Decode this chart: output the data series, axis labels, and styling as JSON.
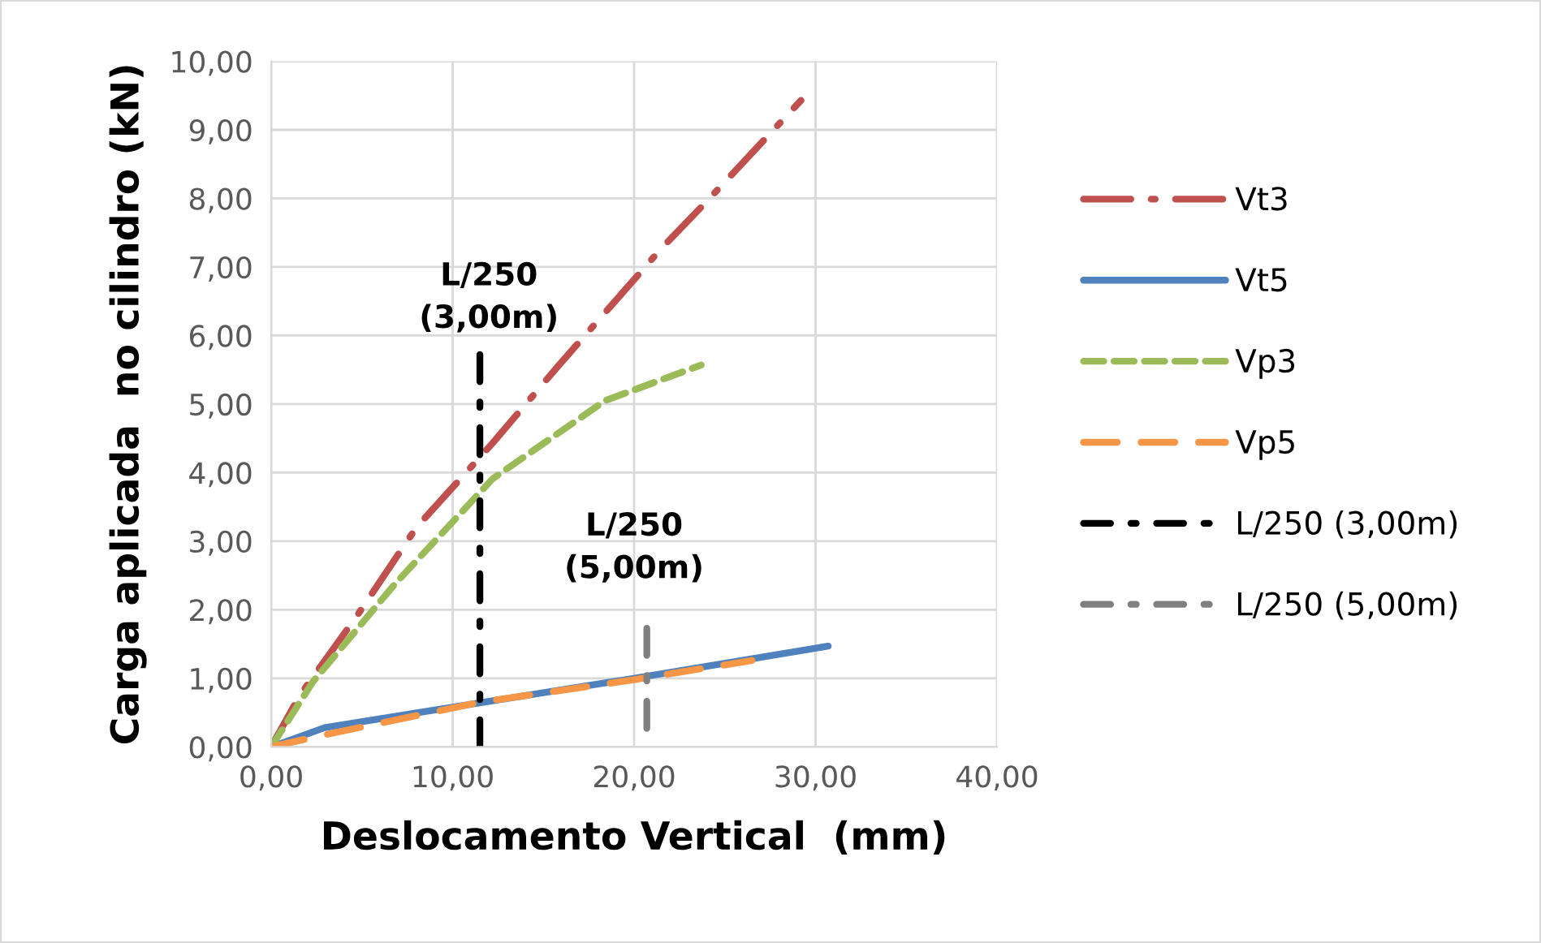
{
  "chart_data": {
    "type": "line",
    "xlabel": "Deslocamento Vertical  (mm)",
    "ylabel": "Carga aplicada  no cilindro (kN)",
    "xlim": [
      0,
      40
    ],
    "ylim": [
      0,
      10
    ],
    "xticks": [
      {
        "value": 0,
        "label": "0,00"
      },
      {
        "value": 10,
        "label": "10,00"
      },
      {
        "value": 20,
        "label": "20,00"
      },
      {
        "value": 30,
        "label": "30,00"
      },
      {
        "value": 40,
        "label": "40,00"
      }
    ],
    "yticks": [
      {
        "value": 0,
        "label": "0,00"
      },
      {
        "value": 1,
        "label": "1,00"
      },
      {
        "value": 2,
        "label": "2,00"
      },
      {
        "value": 3,
        "label": "3,00"
      },
      {
        "value": 4,
        "label": "4,00"
      },
      {
        "value": 5,
        "label": "5,00"
      },
      {
        "value": 6,
        "label": "6,00"
      },
      {
        "value": 7,
        "label": "7,00"
      },
      {
        "value": 8,
        "label": "8,00"
      },
      {
        "value": 9,
        "label": "9,00"
      },
      {
        "value": 10,
        "label": "10,00"
      }
    ],
    "grid": true,
    "legend": "right",
    "marker": "none",
    "series": [
      {
        "name": "Vt3",
        "color": "#c0504d",
        "line_style": "longdashdot",
        "x": [
          0,
          1.6,
          4.7,
          8,
          12.2,
          15.7,
          21.5,
          23.8,
          29.2
        ],
        "values": [
          0,
          0.76,
          1.9,
          3.2,
          4.43,
          5.52,
          7.27,
          7.9,
          9.43
        ]
      },
      {
        "name": "Vt5",
        "color": "#4f81bd",
        "line_style": "solid",
        "x": [
          0,
          2.95,
          10,
          20,
          30.7
        ],
        "values": [
          0,
          0.28,
          0.58,
          1.0,
          1.47
        ]
      },
      {
        "name": "Vp3",
        "color": "#9bbb59",
        "line_style": "dashed",
        "x": [
          0,
          2.3,
          6.8,
          12.2,
          18.4,
          23.7
        ],
        "values": [
          0,
          0.95,
          2.37,
          3.91,
          5.05,
          5.57
        ]
      },
      {
        "name": "Vp5",
        "color": "#f79646",
        "line_style": "longdashed",
        "x": [
          0,
          3.2,
          11.5,
          20,
          26.5
        ],
        "values": [
          0,
          0.19,
          0.65,
          0.98,
          1.26
        ]
      },
      {
        "name": "L/250 (3,00m)",
        "color": "#000000",
        "line_style": "dashdot",
        "x": [
          11.5,
          11.5
        ],
        "values": [
          0,
          5.75
        ]
      },
      {
        "name": "L/250 (5,00m)",
        "color": "#808080",
        "line_style": "dashdot",
        "x": [
          20.7,
          20.7
        ],
        "values": [
          1.73,
          0
        ]
      }
    ],
    "annotations": [
      "L/250\n(3,00m)",
      "L/250\n(5,00m)"
    ]
  }
}
